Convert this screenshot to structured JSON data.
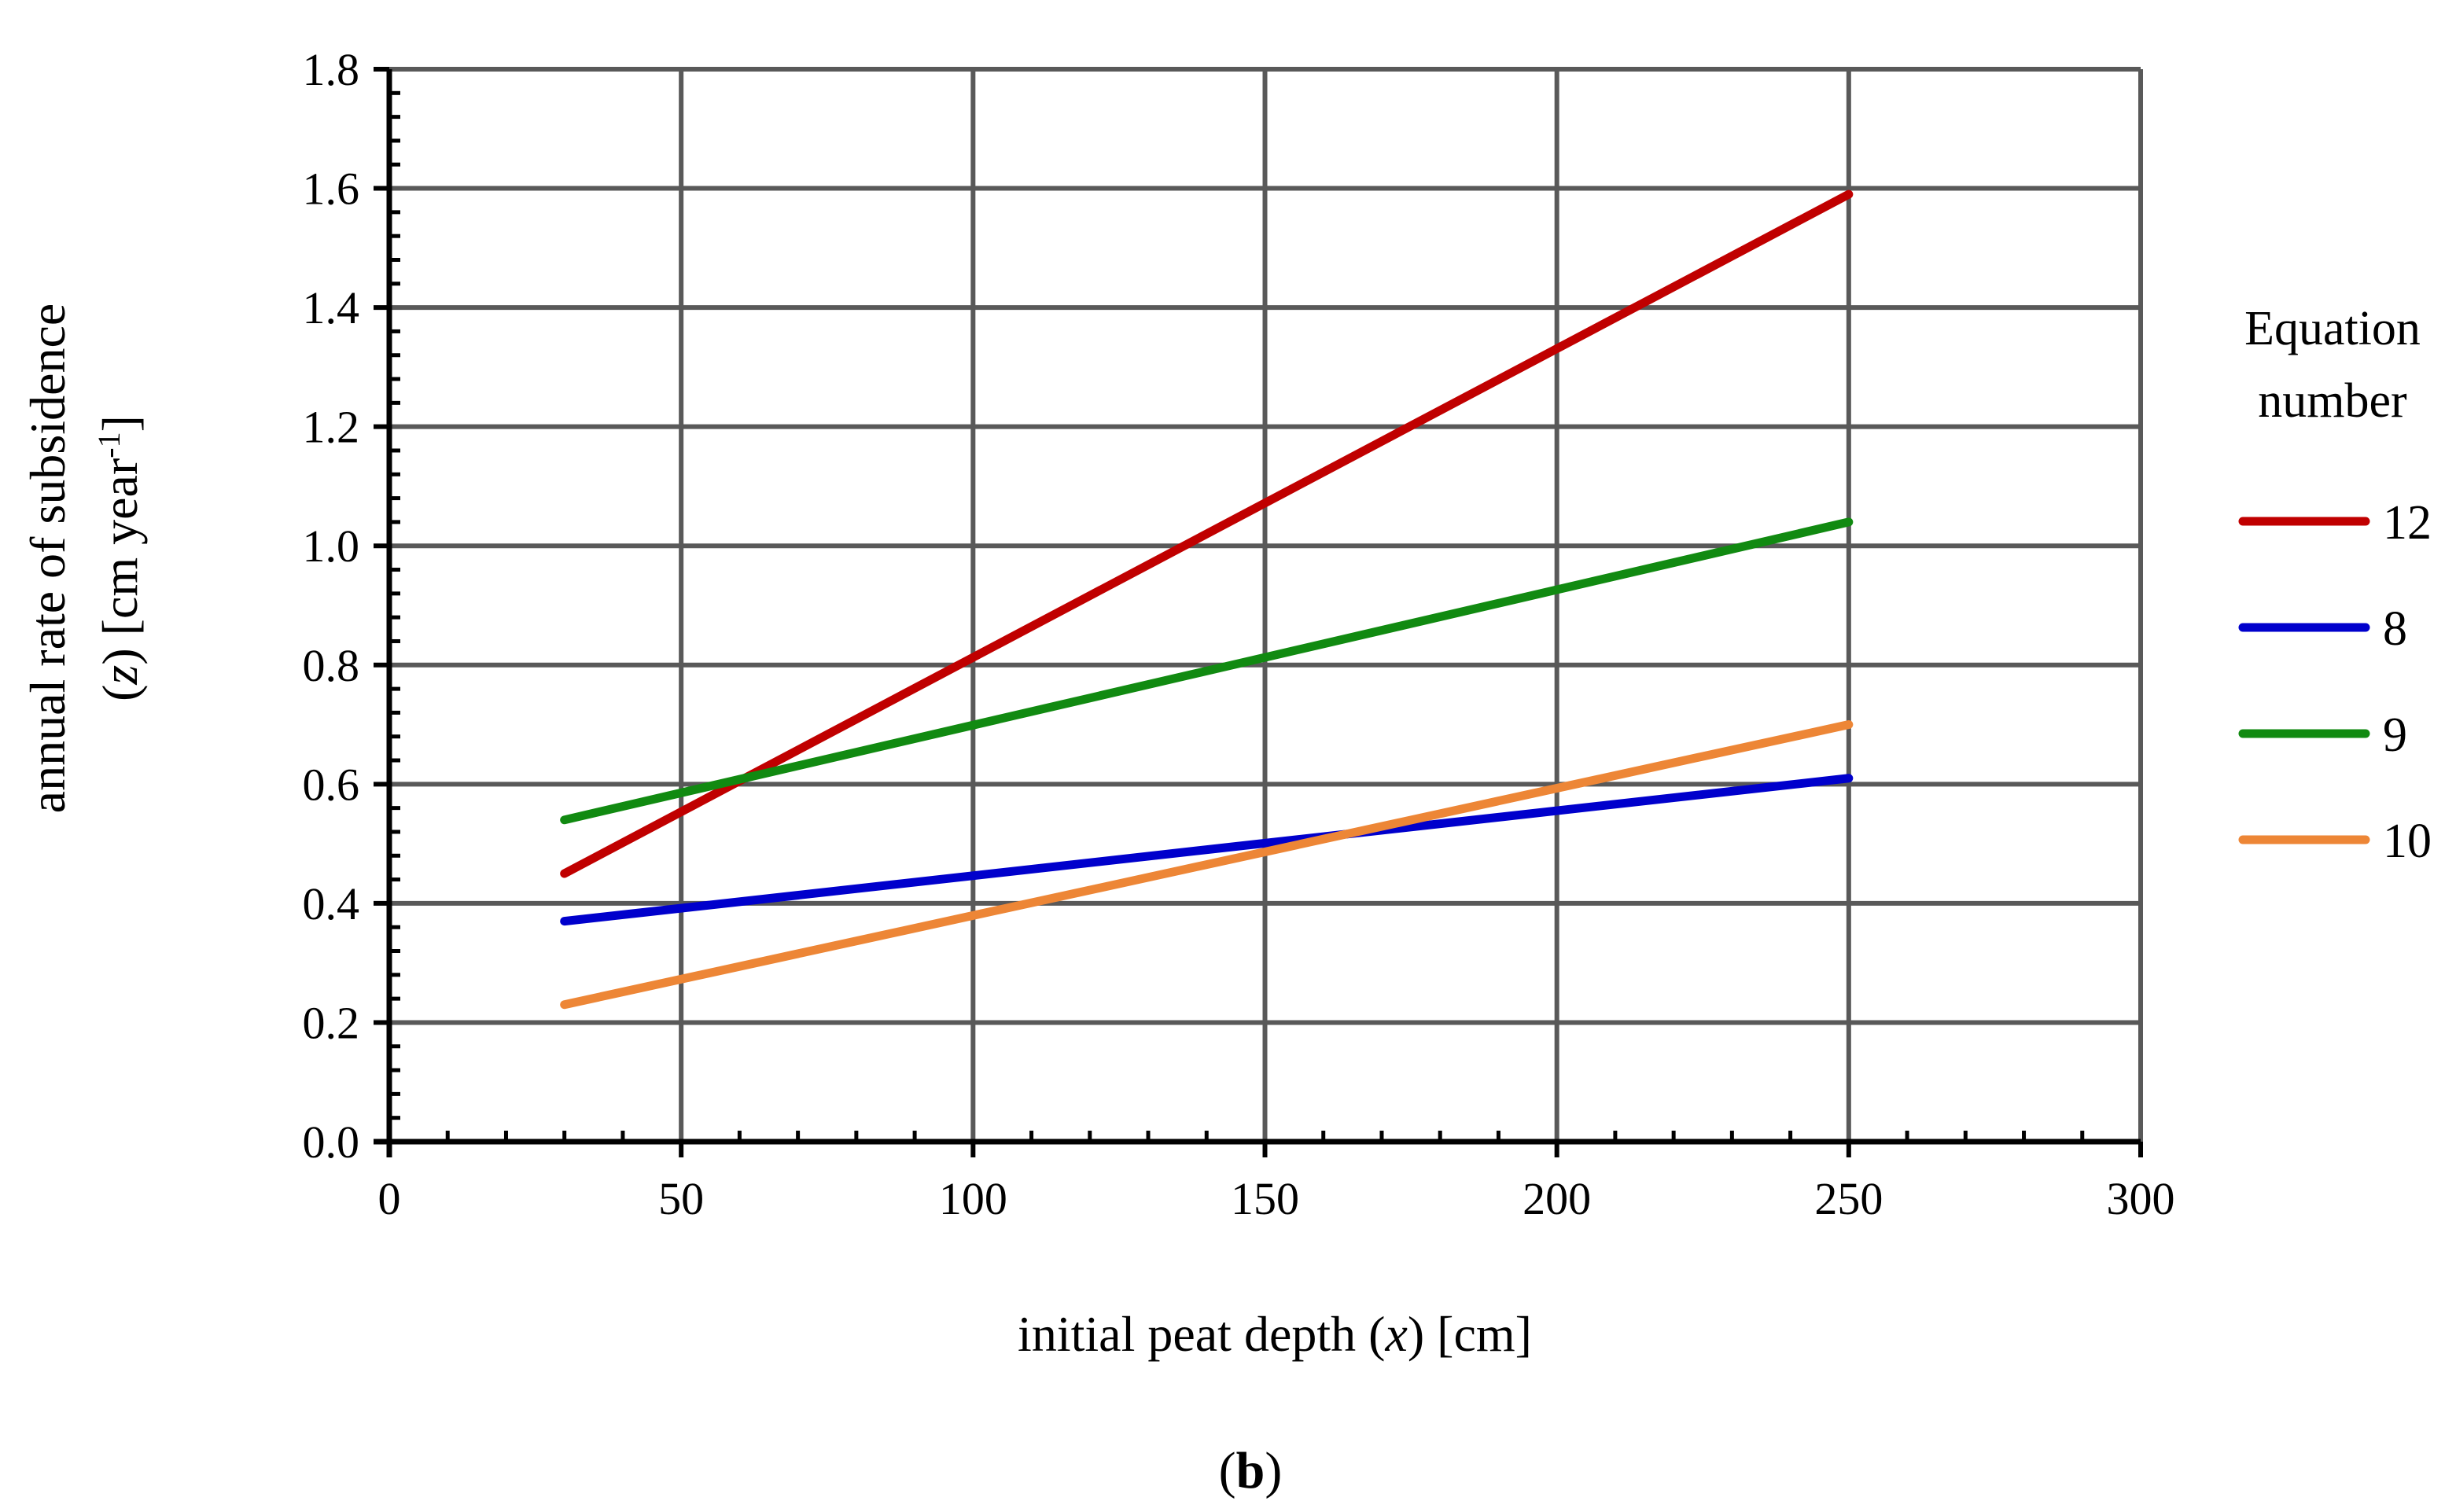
{
  "chart_data": {
    "type": "line",
    "xlabel_parts": [
      "initial peat depth (",
      "x",
      ") [cm]"
    ],
    "ylabel_line1": "annual rate of subsidence",
    "ylabel_line2_parts": [
      "(",
      "z",
      ") [cm year",
      "-1",
      "]"
    ],
    "xlim": [
      0,
      300
    ],
    "ylim": [
      0,
      1.8
    ],
    "xticks": [
      0,
      50,
      100,
      150,
      200,
      250,
      300
    ],
    "xtick_labels": [
      "0",
      "50",
      "100",
      "150",
      "200",
      "250",
      "300"
    ],
    "yticks": [
      0,
      0.2,
      0.4,
      0.6,
      0.8,
      1.0,
      1.2,
      1.4,
      1.6,
      1.8
    ],
    "ytick_labels": [
      "0.0",
      "0.2",
      "0.4",
      "0.6",
      "0.8",
      "1.0",
      "1.2",
      "1.4",
      "1.6",
      "1.8"
    ],
    "grid": true,
    "legend": {
      "title_line1": "Equation",
      "title_line2": "number",
      "placement": "right"
    },
    "series": [
      {
        "name": "12",
        "color": "#c00000",
        "x": [
          30,
          250
        ],
        "y": [
          0.45,
          1.59
        ]
      },
      {
        "name": "8",
        "color": "#0000cc",
        "x": [
          30,
          250
        ],
        "y": [
          0.37,
          0.61
        ]
      },
      {
        "name": "9",
        "color": "#118a11",
        "x": [
          30,
          250
        ],
        "y": [
          0.54,
          1.04
        ]
      },
      {
        "name": "10",
        "color": "#ed8636",
        "x": [
          30,
          250
        ],
        "y": [
          0.23,
          0.7
        ]
      }
    ],
    "panel_label": "b",
    "panel_label_parens": [
      "(",
      ")"
    ]
  }
}
